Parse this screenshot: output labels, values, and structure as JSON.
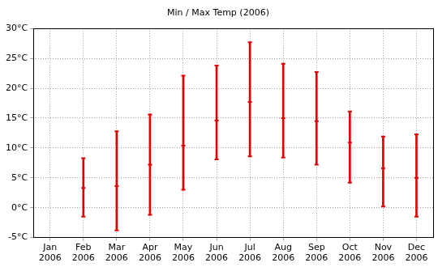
{
  "chart_data": {
    "type": "errorbar",
    "title": "Min / Max Temp (2006)",
    "categories": [
      "Jan 2006",
      "Feb 2006",
      "Mar 2006",
      "Apr 2006",
      "May 2006",
      "Jun 2006",
      "Jul 2006",
      "Aug 2006",
      "Sep 2006",
      "Oct 2006",
      "Nov 2006",
      "Dec 2006"
    ],
    "values": [
      null,
      3.3,
      3.6,
      7.2,
      10.4,
      14.6,
      17.7,
      15.0,
      14.5,
      10.9,
      6.6,
      5.0
    ],
    "min": [
      null,
      -1.5,
      -3.8,
      -1.2,
      3.0,
      8.1,
      8.6,
      8.4,
      7.2,
      4.2,
      0.2,
      -1.5
    ],
    "max": [
      null,
      8.3,
      12.8,
      15.6,
      22.1,
      23.8,
      27.7,
      24.1,
      22.7,
      16.1,
      11.9,
      12.3
    ],
    "color": "#e00000",
    "ylim": [
      -5,
      30
    ],
    "yticks": [
      {
        "value": -5,
        "label": "-5°C"
      },
      {
        "value": 0,
        "label": "0°C"
      },
      {
        "value": 5,
        "label": "5°C"
      },
      {
        "value": 10,
        "label": "10°C"
      },
      {
        "value": 15,
        "label": "15°C"
      },
      {
        "value": 20,
        "label": "20°C"
      },
      {
        "value": 25,
        "label": "25°C"
      },
      {
        "value": 30,
        "label": "30°C"
      }
    ],
    "grid": true
  }
}
